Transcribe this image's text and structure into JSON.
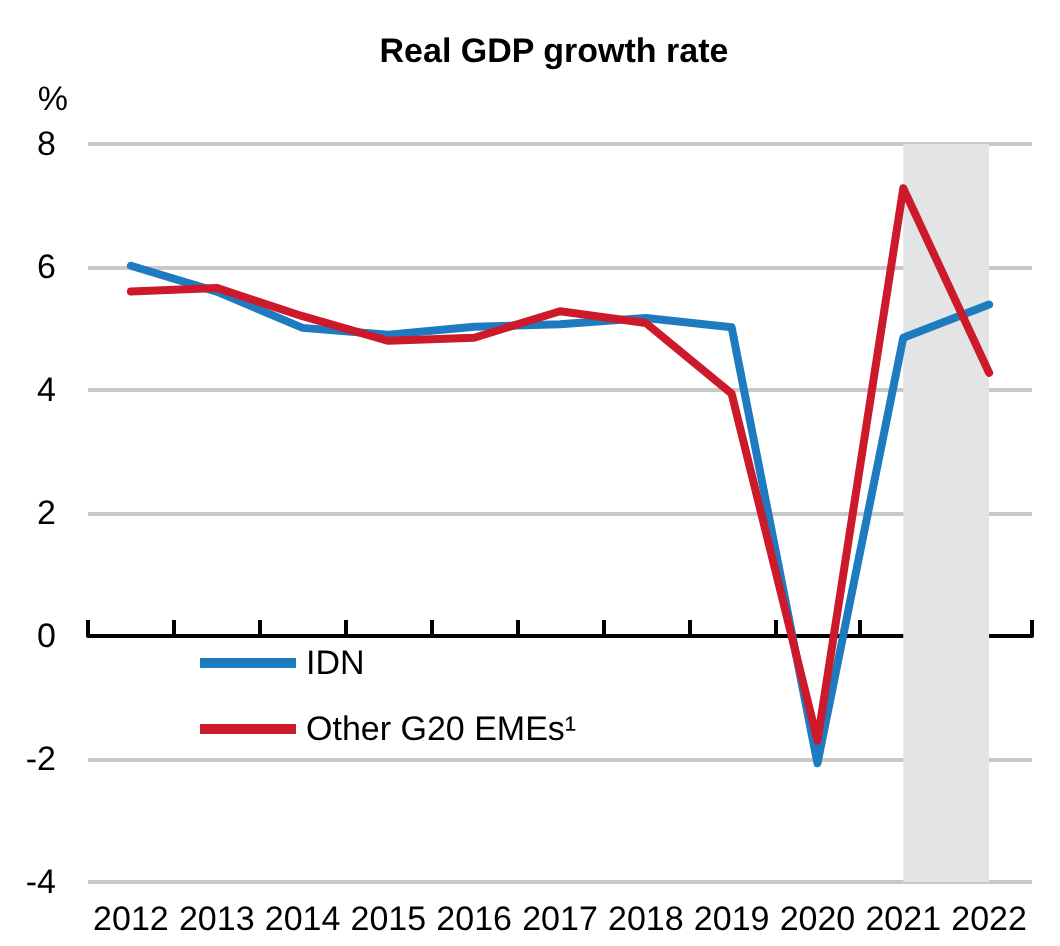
{
  "chart_data": {
    "type": "line",
    "title": "Real GDP growth rate",
    "ylabel": "%",
    "categories": [
      "2012",
      "2013",
      "2014",
      "2015",
      "2016",
      "2017",
      "2018",
      "2019",
      "2020",
      "2021",
      "2022"
    ],
    "series": [
      {
        "name": "IDN",
        "color": "#1f7bc0",
        "values": [
          6.02,
          5.6,
          5.01,
          4.9,
          5.03,
          5.07,
          5.17,
          5.02,
          -2.07,
          4.85,
          5.39
        ]
      },
      {
        "name": "Other G20 EMEs¹",
        "color": "#cc1a2b",
        "values": [
          5.6,
          5.66,
          5.2,
          4.8,
          4.85,
          5.28,
          5.09,
          3.94,
          -1.7,
          7.28,
          4.28
        ]
      }
    ],
    "ylim": [
      -4,
      8
    ],
    "yticks": [
      -4,
      -2,
      0,
      2,
      4,
      6,
      8
    ],
    "grid": "y",
    "legend": "bottom left",
    "marker": "none",
    "line_style": "solid",
    "bands": [
      {
        "axis": "x",
        "from": "2021",
        "to": "2022",
        "color": "#e3e4e6"
      }
    ]
  }
}
